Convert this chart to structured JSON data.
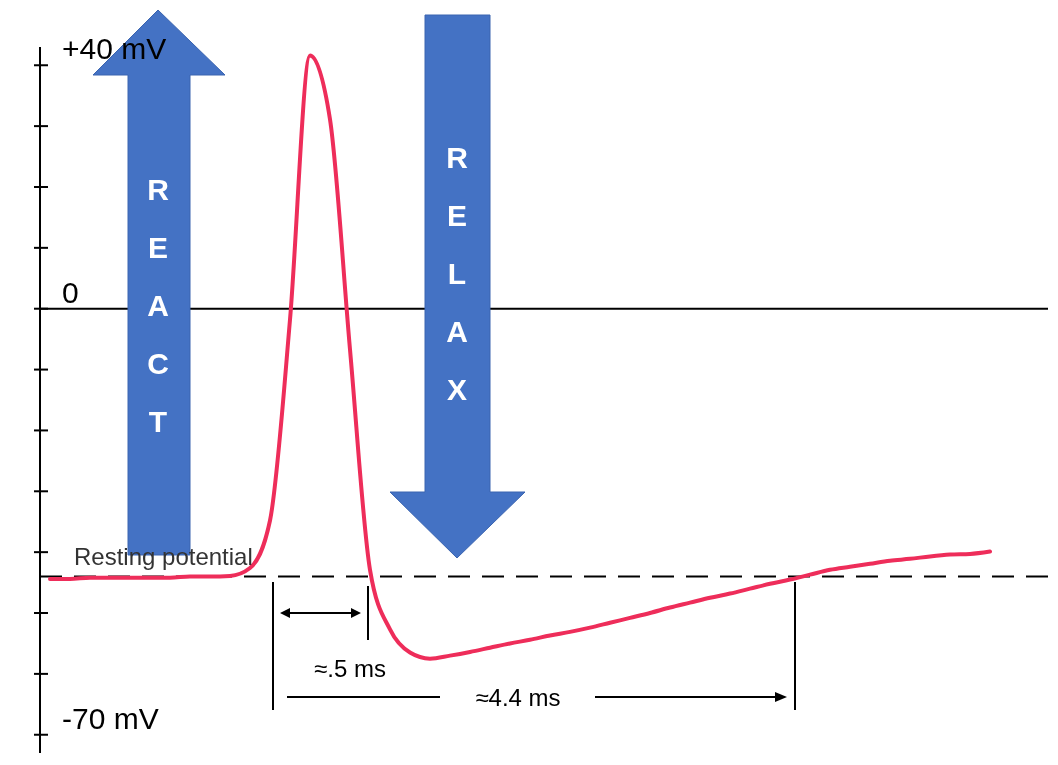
{
  "chart_data": {
    "type": "line",
    "categories": [
      null,
      null,
      null,
      null,
      null,
      null,
      null,
      null,
      null,
      null,
      null,
      null,
      null,
      null,
      null,
      null,
      null,
      null,
      null,
      null,
      null,
      null,
      null,
      null,
      null,
      null,
      null,
      null,
      null,
      null,
      null,
      null,
      null,
      null,
      null,
      null,
      null,
      null,
      null,
      null,
      null,
      null,
      null,
      null,
      null,
      null,
      null,
      null
    ],
    "series": [
      {
        "color": "#ee2d5a",
        "values": [
          -44.4,
          -44.4,
          -44.2,
          -44.2,
          -44.2,
          -44.2,
          -44.2,
          -44.0,
          -44.0,
          -43.9,
          -42.6,
          -34.8,
          -1.8,
          41.6,
          31.1,
          -6.7,
          -42.9,
          -52.7,
          -56.5,
          -57.5,
          -57.0,
          -56.4,
          -55.7,
          -55.0,
          -54.4,
          -53.7,
          -53.1,
          -52.4,
          -51.6,
          -50.8,
          -50.0,
          -49.1,
          -48.3,
          -47.5,
          -46.8,
          -46.0,
          -45.2,
          -44.5,
          -43.7,
          -42.9,
          -42.4,
          -41.9,
          -41.4,
          -41.1,
          -40.7,
          -40.4,
          -40.3,
          -39.9
        ]
      }
    ],
    "ylim": [
      -73,
      43
    ],
    "yticks": [
      {
        "value": 40,
        "label": "+40 mV"
      },
      {
        "value": 30,
        "label": null
      },
      {
        "value": 20,
        "label": null
      },
      {
        "value": 10,
        "label": null
      },
      0,
      {
        "value": -10,
        "label": null
      },
      {
        "value": -20,
        "label": null
      },
      {
        "value": -30,
        "label": null
      },
      {
        "value": -40,
        "label": null
      },
      {
        "value": -50,
        "label": null
      },
      {
        "value": -60,
        "label": null
      },
      {
        "value": -70,
        "label": "-70 mV"
      }
    ],
    "tick_labels": "y",
    "grid": false,
    "marker": "none",
    "line_style": "solid",
    "ref_lines": [
      {
        "axis": "y",
        "value": 0,
        "color": "#000000",
        "line_style": "solid"
      },
      {
        "axis": "y",
        "value": -44,
        "label": "Resting potential",
        "color": "#000000",
        "line_style": "dashed"
      }
    ],
    "annotations": [
      "≈.5 ms",
      "≈4.4 ms",
      "REACT",
      "RELAX"
    ]
  }
}
